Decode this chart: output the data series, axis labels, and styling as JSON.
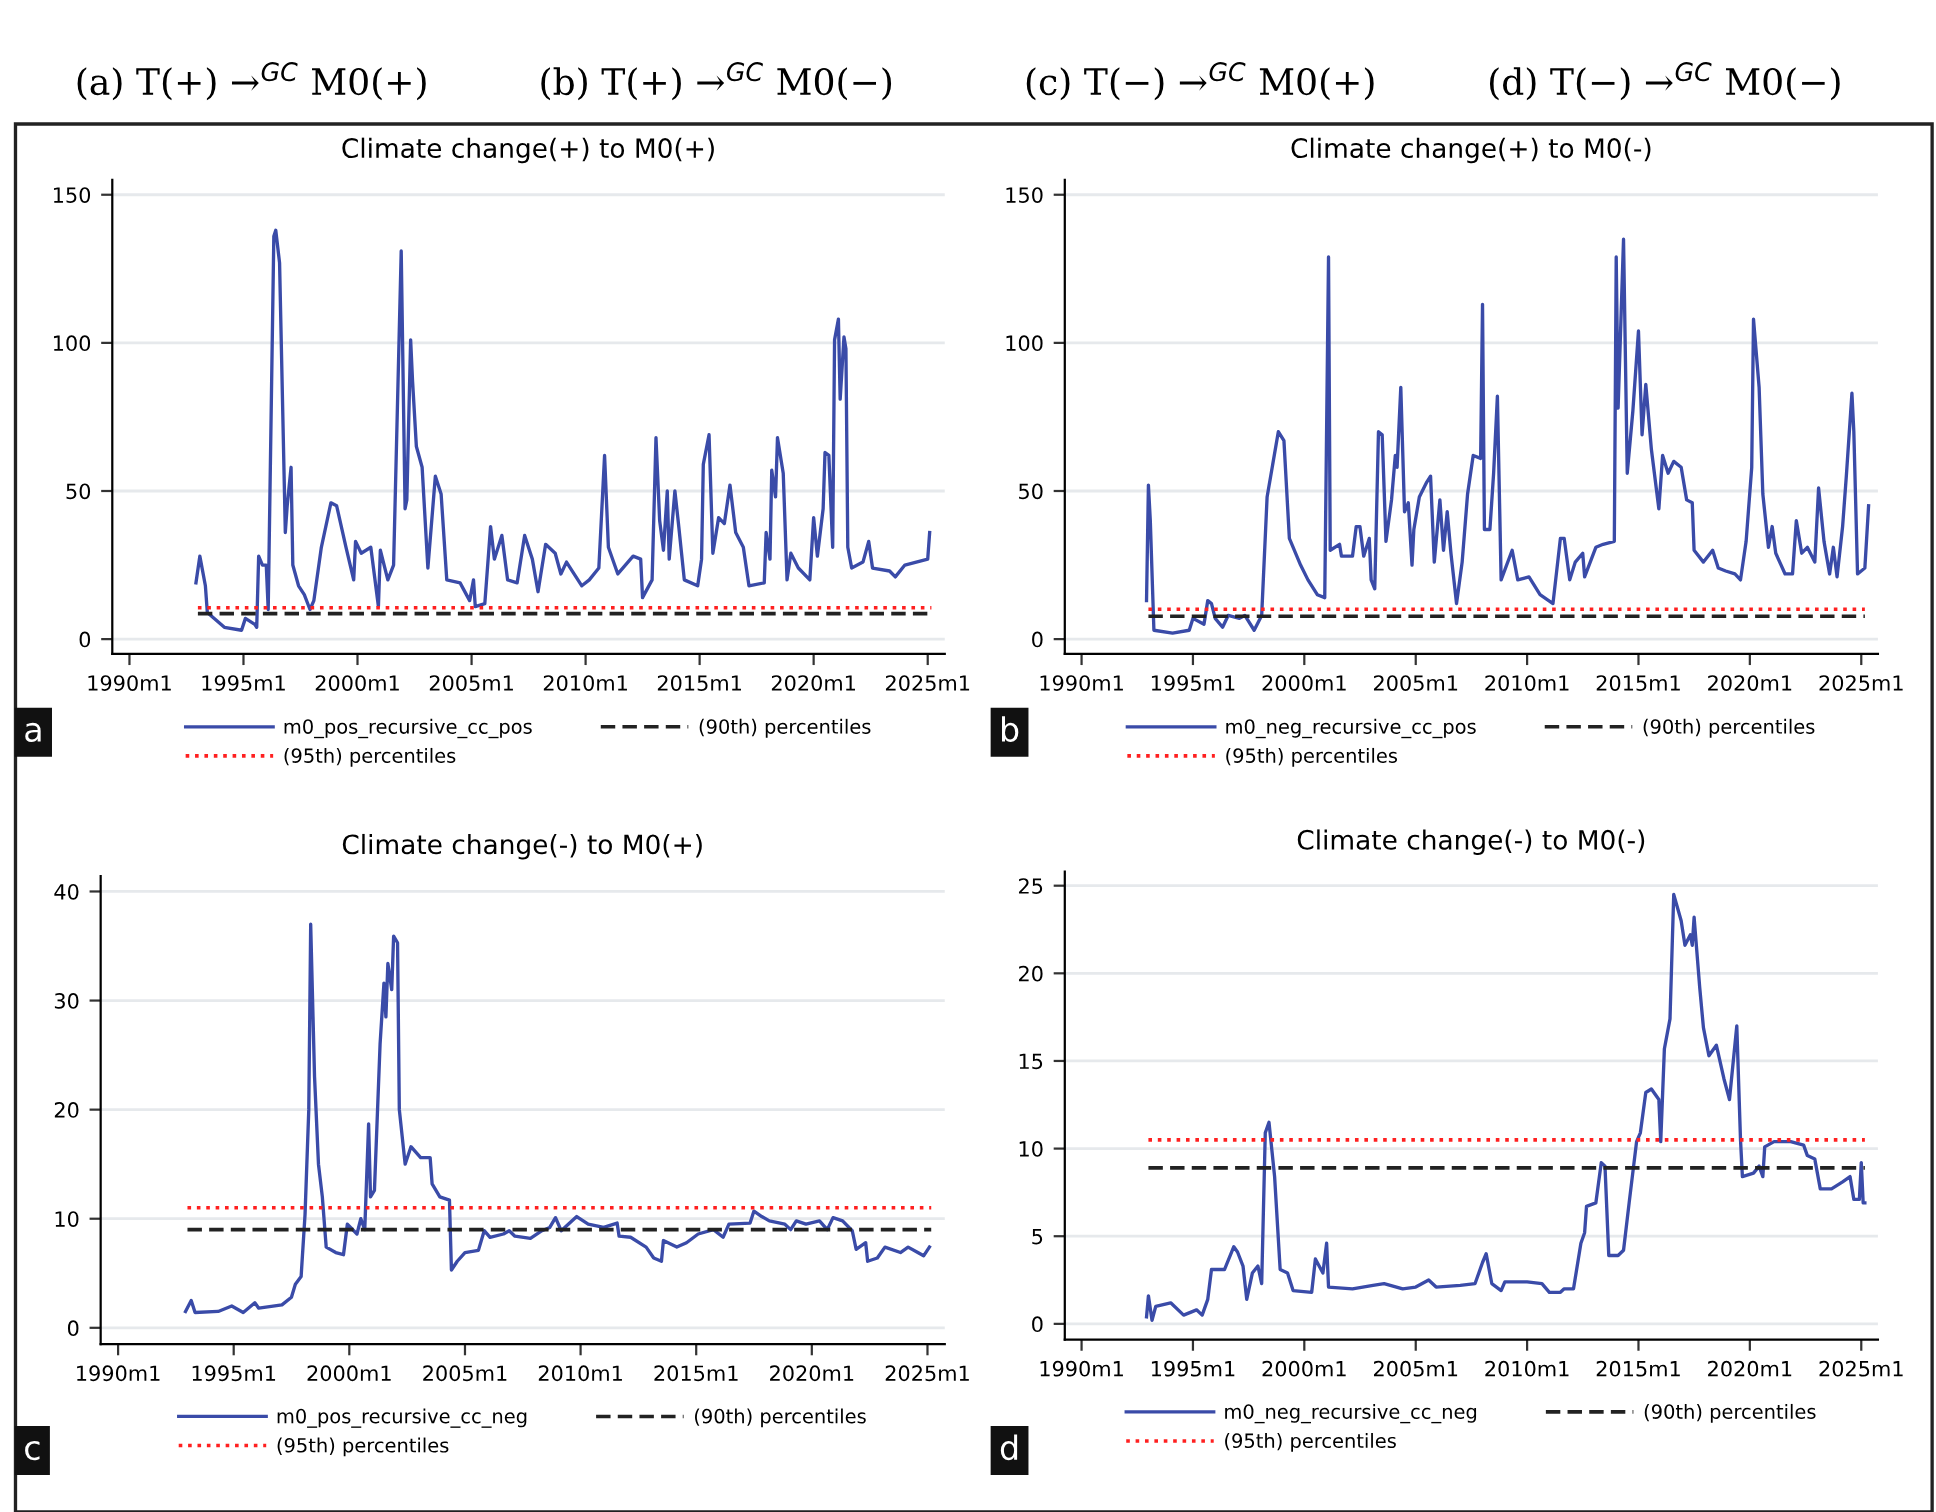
{
  "chart_data": [
    {
      "type": "line",
      "title": "Climate change(+) to M0(+)",
      "annotations": [
        "(a) T(+) →$^{GC}$ M0(+)",
        "a"
      ],
      "xlim": [
        "1989-04",
        "2025-10"
      ],
      "xticks": [
        {
          "value": "1990-01",
          "label": "1990m1"
        },
        {
          "value": "1995-01",
          "label": "1995m1"
        },
        {
          "value": "2000-01",
          "label": "2000m1"
        },
        {
          "value": "2005-01",
          "label": "2005m1"
        },
        {
          "value": "2010-01",
          "label": "2010m1"
        },
        {
          "value": "2015-01",
          "label": "2015m1"
        },
        {
          "value": "2020-01",
          "label": "2020m1"
        },
        {
          "value": "2025-01",
          "label": "2025m1"
        }
      ],
      "ylim": [
        -5,
        155
      ],
      "yticks": [
        0,
        50,
        100,
        150
      ],
      "grid": "y",
      "legend": "bottom",
      "series": [
        {
          "name": "m0_pos_recursive_cc_pos",
          "color": "#3a4ba8",
          "line_style": "solid",
          "x": [
            "1992-12",
            "1993-02",
            "1993-05",
            "1993-06",
            "1994-03",
            "1994-12",
            "1995-02",
            "1995-07",
            "1995-08",
            "1995-09",
            "1995-11",
            "1996-01",
            "1996-02",
            "1996-05",
            "1996-06",
            "1996-08",
            "1996-11",
            "1996-12",
            "1997-02",
            "1997-03",
            "1997-06",
            "1997-09",
            "1997-12",
            "1998-02",
            "1998-06",
            "1998-11",
            "1999-02",
            "1999-07",
            "1999-11",
            "1999-12",
            "2000-03",
            "2000-08",
            "2000-12",
            "2001-01",
            "2001-05",
            "2001-08",
            "2001-12",
            "2002-02",
            "2002-03",
            "2002-05",
            "2002-06",
            "2002-08",
            "2002-11",
            "2003-02",
            "2003-06",
            "2003-09",
            "2003-12",
            "2004-07",
            "2004-12",
            "2005-02",
            "2005-03",
            "2005-08",
            "2005-11",
            "2006-01",
            "2006-05",
            "2006-08",
            "2007-01",
            "2007-05",
            "2007-09",
            "2007-12",
            "2008-04",
            "2008-09",
            "2008-12",
            "2009-03",
            "2009-11",
            "2010-03",
            "2010-08",
            "2010-11",
            "2011-01",
            "2011-06",
            "2012-02",
            "2012-06",
            "2012-07",
            "2012-12",
            "2013-02",
            "2013-04",
            "2013-06",
            "2013-08",
            "2013-09",
            "2013-12",
            "2014-02",
            "2014-05",
            "2014-12",
            "2015-02",
            "2015-03",
            "2015-06",
            "2015-08",
            "2015-11",
            "2016-02",
            "2016-05",
            "2016-08",
            "2016-12",
            "2017-03",
            "2017-11",
            "2017-12",
            "2018-02",
            "2018-03",
            "2018-05",
            "2018-06",
            "2018-09",
            "2018-11",
            "2019-01",
            "2019-05",
            "2019-11",
            "2020-01",
            "2020-03",
            "2020-06",
            "2020-07",
            "2020-09",
            "2020-11",
            "2020-12",
            "2021-02",
            "2021-03",
            "2021-05",
            "2021-06",
            "2021-07",
            "2021-09",
            "2022-03",
            "2022-06",
            "2022-08",
            "2023-05",
            "2023-08",
            "2024-01",
            "2025-01",
            "2025-02"
          ],
          "values": [
            19,
            28,
            18,
            9,
            4,
            3,
            7,
            5,
            4,
            28,
            25,
            25,
            10,
            136,
            138,
            127,
            36,
            45,
            58,
            25,
            18,
            15,
            10,
            13,
            31,
            46,
            45,
            31,
            20,
            33,
            29,
            31,
            11,
            30,
            20,
            25,
            131,
            44,
            47,
            101,
            87,
            65,
            58,
            24,
            55,
            49,
            20,
            19,
            13,
            20,
            11,
            12,
            38,
            27,
            35,
            20,
            19,
            35,
            27,
            16,
            32,
            29,
            22,
            26,
            18,
            20,
            24,
            62,
            31,
            22,
            28,
            27,
            14,
            20,
            68,
            40,
            30,
            50,
            27,
            50,
            38,
            20,
            18,
            27,
            59,
            69,
            29,
            41,
            39,
            52,
            36,
            31,
            18,
            19,
            36,
            27,
            57,
            48,
            68,
            56,
            20,
            29,
            24,
            20,
            41,
            28,
            44,
            63,
            62,
            31,
            101,
            108,
            81,
            102,
            98,
            31,
            24,
            26,
            33,
            24,
            23,
            21,
            25,
            27,
            36
          ]
        },
        {
          "name": "(90th) percentiles",
          "color": "#222222",
          "line_style": "dashed",
          "x": [
            "1993-01",
            "2025-03"
          ],
          "values": [
            8.6,
            8.6
          ]
        },
        {
          "name": "(95th) percentiles",
          "color": "#ff2020",
          "line_style": "dotted",
          "x": [
            "1993-01",
            "2025-03"
          ],
          "values": [
            10.6,
            10.6
          ]
        }
      ]
    },
    {
      "type": "line",
      "title": "Climate change(+) to M0(-)",
      "annotations": [
        "(b) T(+) →$^{GC}$ M0(−)",
        "b"
      ],
      "xlim": [
        "1989-04",
        "2025-10"
      ],
      "xticks": [
        {
          "value": "1990-01",
          "label": "1990m1"
        },
        {
          "value": "1995-01",
          "label": "1995m1"
        },
        {
          "value": "2000-01",
          "label": "2000m1"
        },
        {
          "value": "2005-01",
          "label": "2005m1"
        },
        {
          "value": "2010-01",
          "label": "2010m1"
        },
        {
          "value": "2015-01",
          "label": "2015m1"
        },
        {
          "value": "2020-01",
          "label": "2020m1"
        },
        {
          "value": "2025-01",
          "label": "2025m1"
        }
      ],
      "ylim": [
        -5,
        155
      ],
      "yticks": [
        0,
        50,
        100,
        150
      ],
      "grid": "y",
      "legend": "bottom",
      "series": [
        {
          "name": "m0_neg_recursive_cc_pos",
          "color": "#3a4ba8",
          "line_style": "solid",
          "x": [
            "1992-12",
            "1993-01",
            "1993-02",
            "1993-04",
            "1994-02",
            "1994-11",
            "1995-01",
            "1995-07",
            "1995-09",
            "1995-11",
            "1996-01",
            "1996-05",
            "1996-08",
            "1997-02",
            "1997-05",
            "1997-10",
            "1998-02",
            "1998-05",
            "1998-11",
            "1999-02",
            "1999-05",
            "1999-11",
            "2000-03",
            "2000-08",
            "2000-12",
            "2001-02",
            "2001-03",
            "2001-08",
            "2001-09",
            "2002-03",
            "2002-05",
            "2002-07",
            "2002-09",
            "2002-12",
            "2003-01",
            "2003-03",
            "2003-05",
            "2003-07",
            "2003-09",
            "2003-12",
            "2004-02",
            "2004-03",
            "2004-05",
            "2004-07",
            "2004-09",
            "2004-11",
            "2004-12",
            "2005-03",
            "2005-07",
            "2005-09",
            "2005-11",
            "2006-02",
            "2006-04",
            "2006-06",
            "2006-08",
            "2006-11",
            "2007-02",
            "2007-05",
            "2007-08",
            "2007-12",
            "2008-01",
            "2008-02",
            "2008-05",
            "2008-07",
            "2008-09",
            "2008-11",
            "2009-05",
            "2009-08",
            "2010-02",
            "2010-08",
            "2011-03",
            "2011-07",
            "2011-09",
            "2011-12",
            "2012-03",
            "2012-07",
            "2012-08",
            "2013-02",
            "2013-06",
            "2013-12",
            "2014-01",
            "2014-02",
            "2014-05",
            "2014-07",
            "2014-10",
            "2015-01",
            "2015-03",
            "2015-05",
            "2015-08",
            "2015-12",
            "2016-02",
            "2016-05",
            "2016-08",
            "2016-12",
            "2017-03",
            "2017-06",
            "2017-07",
            "2017-12",
            "2018-05",
            "2018-08",
            "2018-12",
            "2019-05",
            "2019-08",
            "2019-11",
            "2020-02",
            "2020-03",
            "2020-06",
            "2020-08",
            "2020-11",
            "2021-01",
            "2021-03",
            "2021-08",
            "2021-12",
            "2022-02",
            "2022-05",
            "2022-08",
            "2022-12",
            "2023-02",
            "2023-05",
            "2023-08",
            "2023-10",
            "2023-12",
            "2024-03",
            "2024-05",
            "2024-08",
            "2024-09",
            "2024-11",
            "2025-03",
            "2025-05"
          ],
          "values": [
            13,
            52,
            40,
            3,
            2,
            3,
            7,
            5,
            13,
            12,
            7,
            4,
            8,
            7,
            8,
            3,
            8,
            48,
            70,
            67,
            34,
            25,
            20,
            15,
            14,
            129,
            30,
            32,
            28,
            28,
            38,
            38,
            28,
            34,
            20,
            17,
            70,
            69,
            33,
            47,
            62,
            58,
            85,
            43,
            46,
            25,
            37,
            48,
            53,
            55,
            26,
            47,
            30,
            43,
            29,
            12,
            26,
            49,
            62,
            61,
            113,
            37,
            37,
            56,
            82,
            20,
            30,
            20,
            21,
            15,
            12,
            34,
            34,
            20,
            26,
            29,
            21,
            31,
            32,
            33,
            129,
            78,
            135,
            56,
            77,
            104,
            69,
            86,
            64,
            44,
            62,
            56,
            60,
            58,
            47,
            46,
            30,
            26,
            30,
            24,
            23,
            22,
            20,
            33,
            58,
            108,
            85,
            49,
            31,
            38,
            29,
            22,
            22,
            40,
            29,
            31,
            26,
            51,
            33,
            22,
            31,
            21,
            38,
            55,
            83,
            70,
            22,
            24,
            45
          ]
        },
        {
          "name": "(90th) percentiles",
          "color": "#222222",
          "line_style": "dashed",
          "x": [
            "1993-01",
            "2025-03"
          ],
          "values": [
            7.7,
            7.7
          ]
        },
        {
          "name": "(95th) percentiles",
          "color": "#ff2020",
          "line_style": "dotted",
          "x": [
            "1993-01",
            "2025-03"
          ],
          "values": [
            10.1,
            10.1
          ]
        }
      ]
    },
    {
      "type": "line",
      "title": "Climate change(-) to M0(+)",
      "annotations": [
        "(c) T(−) →$^{GC}$ M0(+)",
        "c"
      ],
      "xlim": [
        "1989-04",
        "2025-10"
      ],
      "xticks": [
        {
          "value": "1990-01",
          "label": "1990m1"
        },
        {
          "value": "1995-01",
          "label": "1995m1"
        },
        {
          "value": "2000-01",
          "label": "2000m1"
        },
        {
          "value": "2005-01",
          "label": "2005m1"
        },
        {
          "value": "2010-01",
          "label": "2010m1"
        },
        {
          "value": "2015-01",
          "label": "2015m1"
        },
        {
          "value": "2020-01",
          "label": "2020m1"
        },
        {
          "value": "2025-01",
          "label": "2025m1"
        }
      ],
      "ylim": [
        -1.5,
        41.4
      ],
      "yticks": [
        0,
        10,
        20,
        30,
        40
      ],
      "grid": "y",
      "legend": "bottom",
      "series": [
        {
          "name": "m0_pos_recursive_cc_neg",
          "color": "#3a4ba8",
          "line_style": "solid",
          "x": [
            "1992-12",
            "1993-03",
            "1993-05",
            "1994-05",
            "1994-12",
            "1995-06",
            "1995-12",
            "1996-02",
            "1997-02",
            "1997-07",
            "1997-09",
            "1997-12",
            "1998-02",
            "1998-04",
            "1998-05",
            "1998-07",
            "1998-09",
            "1998-11",
            "1999-01",
            "1999-06",
            "1999-10",
            "1999-12",
            "2000-05",
            "2000-07",
            "2000-09",
            "2000-11",
            "2000-12",
            "2001-02",
            "2001-05",
            "2001-07",
            "2001-08",
            "2001-09",
            "2001-11",
            "2001-12",
            "2002-02",
            "2002-03",
            "2002-06",
            "2002-09",
            "2003-02",
            "2003-07",
            "2003-08",
            "2003-12",
            "2004-05",
            "2004-06",
            "2004-09",
            "2005-01",
            "2005-08",
            "2005-11",
            "2006-02",
            "2006-09",
            "2006-12",
            "2007-03",
            "2007-11",
            "2008-05",
            "2008-09",
            "2008-12",
            "2009-03",
            "2009-11",
            "2010-05",
            "2011-01",
            "2011-08",
            "2011-09",
            "2012-03",
            "2012-11",
            "2013-03",
            "2013-07",
            "2013-08",
            "2014-03",
            "2014-08",
            "2015-02",
            "2015-10",
            "2016-03",
            "2016-06",
            "2017-05",
            "2017-07",
            "2017-11",
            "2018-03",
            "2018-11",
            "2019-02",
            "2019-05",
            "2019-10",
            "2020-05",
            "2020-09",
            "2020-12",
            "2021-05",
            "2021-10",
            "2021-12",
            "2022-05",
            "2022-06",
            "2022-11",
            "2023-03",
            "2023-11",
            "2024-03",
            "2024-08",
            "2024-11",
            "2025-02"
          ],
          "values": [
            1.5,
            2.5,
            1.4,
            1.5,
            2,
            1.4,
            2.3,
            1.8,
            2.1,
            2.8,
            4,
            4.7,
            10.4,
            20,
            37,
            23,
            15,
            12,
            7.4,
            6.9,
            6.7,
            9.5,
            8.6,
            10,
            9,
            18.7,
            12,
            12.6,
            26,
            31.6,
            28.5,
            33.4,
            31,
            35.9,
            35.3,
            20,
            15,
            16.6,
            15.6,
            15.6,
            13.2,
            12,
            11.7,
            5.3,
            6.1,
            6.9,
            7.1,
            8.9,
            8.3,
            8.6,
            8.9,
            8.4,
            8.2,
            8.9,
            9.2,
            10.1,
            8.9,
            10.2,
            9.5,
            9.2,
            9.6,
            8.4,
            8.3,
            7.4,
            6.4,
            6.1,
            8,
            7.4,
            7.8,
            8.6,
            9,
            8.3,
            9.5,
            9.6,
            10.7,
            10.2,
            9.8,
            9.5,
            9,
            9.8,
            9.5,
            9.8,
            9,
            10.1,
            9.8,
            8.9,
            7.2,
            7.8,
            6.1,
            6.4,
            7.4,
            6.9,
            7.4,
            6.9,
            6.6,
            7.4
          ]
        },
        {
          "name": "(90th) percentiles",
          "color": "#222222",
          "line_style": "dashed",
          "x": [
            "1993-01",
            "2025-03"
          ],
          "values": [
            9.0,
            9.0
          ]
        },
        {
          "name": "(95th) percentiles",
          "color": "#ff2020",
          "line_style": "dotted",
          "x": [
            "1993-01",
            "2025-03"
          ],
          "values": [
            11.0,
            11.0
          ]
        }
      ]
    },
    {
      "type": "line",
      "title": "Climate change(-) to M0(-)",
      "annotations": [
        "(d) T(−) →$^{GC}$ M0(−)",
        "d"
      ],
      "xlim": [
        "1989-04",
        "2025-10"
      ],
      "xticks": [
        {
          "value": "1990-01",
          "label": "1990m1"
        },
        {
          "value": "1995-01",
          "label": "1995m1"
        },
        {
          "value": "2000-01",
          "label": "2000m1"
        },
        {
          "value": "2005-01",
          "label": "2005m1"
        },
        {
          "value": "2010-01",
          "label": "2010m1"
        },
        {
          "value": "2015-01",
          "label": "2015m1"
        },
        {
          "value": "2020-01",
          "label": "2020m1"
        },
        {
          "value": "2025-01",
          "label": "2025m1"
        }
      ],
      "ylim": [
        -0.9,
        25.8
      ],
      "yticks": [
        0,
        5,
        10,
        15,
        20,
        25
      ],
      "grid": "y",
      "legend": "bottom",
      "series": [
        {
          "name": "m0_neg_recursive_cc_neg",
          "color": "#3a4ba8",
          "line_style": "solid",
          "x": [
            "1992-12",
            "1993-01",
            "1993-03",
            "1993-05",
            "1994-01",
            "1994-08",
            "1995-03",
            "1995-06",
            "1995-09",
            "1995-11",
            "1996-06",
            "1996-11",
            "1997-01",
            "1997-04",
            "1997-06",
            "1997-09",
            "1997-12",
            "1998-02",
            "1998-04",
            "1998-06",
            "1998-09",
            "1998-12",
            "1999-04",
            "1999-07",
            "2000-05",
            "2000-07",
            "2000-11",
            "2001-01",
            "2001-02",
            "2002-03",
            "2003-02",
            "2003-08",
            "2004-06",
            "2005-01",
            "2005-08",
            "2005-12",
            "2007-01",
            "2007-09",
            "2008-01",
            "2008-03",
            "2008-06",
            "2008-11",
            "2009-01",
            "2010-01",
            "2010-09",
            "2011-01",
            "2011-07",
            "2011-09",
            "2012-02",
            "2012-06",
            "2012-08",
            "2012-09",
            "2013-02",
            "2013-05",
            "2013-07",
            "2013-09",
            "2014-02",
            "2014-05",
            "2014-08",
            "2014-12",
            "2015-02",
            "2015-05",
            "2015-08",
            "2015-12",
            "2016-01",
            "2016-03",
            "2016-06",
            "2016-08",
            "2016-12",
            "2017-02",
            "2017-05",
            "2017-06",
            "2017-07",
            "2017-10",
            "2017-12",
            "2018-03",
            "2018-07",
            "2018-11",
            "2019-02",
            "2019-06",
            "2019-08",
            "2019-09",
            "2020-03",
            "2020-06",
            "2020-08",
            "2020-09",
            "2021-02",
            "2021-11",
            "2022-06",
            "2022-08",
            "2022-12",
            "2023-03",
            "2023-09",
            "2024-03",
            "2024-07",
            "2024-09",
            "2024-12",
            "2025-01",
            "2025-02",
            "2025-03"
          ],
          "values": [
            0.4,
            1.6,
            0.2,
            1,
            1.2,
            0.5,
            0.8,
            0.5,
            1.4,
            3.1,
            3.1,
            4.4,
            4.1,
            3.3,
            1.4,
            2.9,
            3.3,
            2.3,
            10.9,
            11.5,
            8.4,
            3.1,
            2.9,
            1.9,
            1.8,
            3.7,
            2.9,
            4.6,
            2.1,
            2,
            2.2,
            2.3,
            2,
            2.1,
            2.5,
            2.1,
            2.2,
            2.3,
            3.5,
            4,
            2.3,
            1.9,
            2.4,
            2.4,
            2.3,
            1.8,
            1.8,
            2,
            2,
            4.6,
            5.2,
            6.7,
            6.9,
            9.2,
            9,
            3.9,
            3.9,
            4.2,
            6.9,
            10.4,
            10.9,
            13.2,
            13.4,
            12.8,
            10.4,
            15.7,
            17.4,
            24.5,
            23,
            21.6,
            22.2,
            21.6,
            23.2,
            19.2,
            16.9,
            15.3,
            15.9,
            14,
            12.8,
            17,
            10.5,
            8.4,
            8.6,
            9,
            8.4,
            10.1,
            10.4,
            10.4,
            10.2,
            9.6,
            9.4,
            7.7,
            7.7,
            8.1,
            8.4,
            7.1,
            7.1,
            9.2,
            6.9,
            6.9
          ]
        },
        {
          "name": "(90th) percentiles",
          "color": "#222222",
          "line_style": "dashed",
          "x": [
            "1993-01",
            "2025-03"
          ],
          "values": [
            8.9,
            8.9
          ]
        },
        {
          "name": "(95th) percentiles",
          "color": "#ff2020",
          "line_style": "dotted",
          "x": [
            "1993-01",
            "2025-03"
          ],
          "values": [
            10.5,
            10.5
          ]
        }
      ]
    }
  ]
}
